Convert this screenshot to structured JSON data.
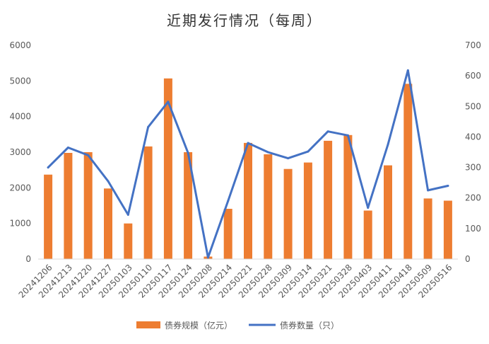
{
  "chart_data": {
    "type": "bar+line",
    "title": "近期发行情况（每周）",
    "categories": [
      "20241206",
      "20241213",
      "20241220",
      "20241227",
      "20250103",
      "20250110",
      "20250117",
      "20250124",
      "20250208",
      "20250214",
      "20250221",
      "20250228",
      "20250309",
      "20250314",
      "20250321",
      "20250328",
      "20250403",
      "20250411",
      "20250418",
      "20250509",
      "20250516"
    ],
    "series": [
      {
        "name": "债券规模（亿元）",
        "type": "bar",
        "axis": "left",
        "color": "#ED7D31",
        "values": [
          2370,
          2980,
          3000,
          1980,
          1000,
          3160,
          5070,
          3000,
          70,
          1410,
          3260,
          2940,
          2530,
          2710,
          3320,
          3480,
          1360,
          2630,
          4920,
          1700,
          1640
        ]
      },
      {
        "name": "债券数量（只）",
        "type": "line",
        "axis": "right",
        "color": "#4472C4",
        "values": [
          300,
          365,
          340,
          255,
          145,
          432,
          515,
          348,
          5,
          190,
          380,
          350,
          330,
          352,
          418,
          405,
          168,
          375,
          618,
          225,
          240
        ]
      }
    ],
    "y_left": {
      "min": 0,
      "max": 6000,
      "step": 1000
    },
    "y_right": {
      "min": 0,
      "max": 700,
      "step": 100
    },
    "grid": false,
    "legend_position": "bottom"
  }
}
